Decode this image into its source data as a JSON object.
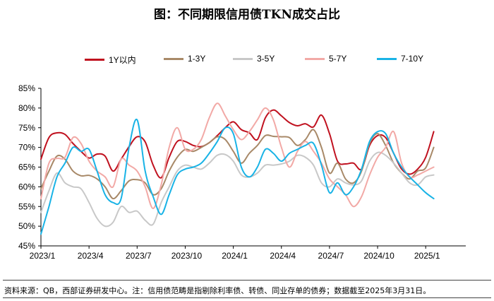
{
  "title": "图：不同期限信用债TKN成交占比",
  "source": "资料来源：QB，西部证券研发中心。注：信用债范畴是指剔除利率债、转债、同业存单的债券；数据截至2025年3月31日。",
  "chart_data": {
    "type": "line",
    "title": "图：不同期限信用债TKN成交占比",
    "xlabel": "",
    "ylabel": "",
    "ylim": [
      45,
      85
    ],
    "yticks": [
      "45%",
      "50%",
      "55%",
      "60%",
      "65%",
      "70%",
      "75%",
      "80%",
      "85%"
    ],
    "ytick_values": [
      45,
      50,
      55,
      60,
      65,
      70,
      75,
      80,
      85
    ],
    "x_range": [
      0,
      26.5
    ],
    "xticks": [
      {
        "label": "2023/1",
        "x": 0
      },
      {
        "label": "2023/4",
        "x": 3
      },
      {
        "label": "2023/7",
        "x": 6
      },
      {
        "label": "2023/10",
        "x": 9
      },
      {
        "label": "2024/1",
        "x": 12
      },
      {
        "label": "2024/4",
        "x": 15
      },
      {
        "label": "2024/7",
        "x": 18
      },
      {
        "label": "2024/10",
        "x": 21
      },
      {
        "label": "2025/1",
        "x": 24
      }
    ],
    "series": [
      {
        "name": "1Y以内",
        "color": "#C0111F",
        "points": [
          [
            0,
            67
          ],
          [
            0.5,
            72.5
          ],
          [
            1,
            73.7
          ],
          [
            1.5,
            73.3
          ],
          [
            2,
            71
          ],
          [
            2.5,
            69
          ],
          [
            3,
            67.3
          ],
          [
            3.5,
            68.3
          ],
          [
            4,
            67.8
          ],
          [
            4.5,
            64
          ],
          [
            5,
            67
          ],
          [
            5.5,
            70.2
          ],
          [
            6,
            72.7
          ],
          [
            6.5,
            71.4
          ],
          [
            7,
            65.5
          ],
          [
            7.5,
            62.3
          ],
          [
            8,
            67.5
          ],
          [
            8.5,
            71.5
          ],
          [
            9,
            71.5
          ],
          [
            9.5,
            70.5
          ],
          [
            10,
            70.2
          ],
          [
            10.5,
            71.2
          ],
          [
            11,
            73
          ],
          [
            11.5,
            75
          ],
          [
            12,
            76.5
          ],
          [
            12.5,
            74.5
          ],
          [
            13,
            73.7
          ],
          [
            13.5,
            72
          ],
          [
            14,
            77.5
          ],
          [
            14.5,
            79.5
          ],
          [
            15,
            78
          ],
          [
            15.5,
            76.3
          ],
          [
            16,
            75.5
          ],
          [
            16.5,
            76
          ],
          [
            17,
            75.2
          ],
          [
            17.5,
            78.2
          ],
          [
            18,
            73.5
          ],
          [
            18.5,
            66.5
          ],
          [
            19,
            65.8
          ],
          [
            19.5,
            66
          ],
          [
            20,
            64.5
          ],
          [
            20.5,
            70.5
          ],
          [
            21,
            73
          ],
          [
            21.5,
            72.5
          ],
          [
            22,
            68.5
          ],
          [
            22.5,
            64.5
          ],
          [
            23,
            63.2
          ],
          [
            23.5,
            64.5
          ],
          [
            24,
            67.5
          ],
          [
            24.5,
            74
          ]
        ]
      },
      {
        "name": "1-3Y",
        "color": "#A88968",
        "points": [
          [
            0,
            59.5
          ],
          [
            0.5,
            64
          ],
          [
            1,
            67.8
          ],
          [
            1.5,
            67
          ],
          [
            2,
            64
          ],
          [
            2.5,
            62.8
          ],
          [
            3,
            62.9
          ],
          [
            3.5,
            62
          ],
          [
            4,
            60
          ],
          [
            4.5,
            57
          ],
          [
            5,
            59
          ],
          [
            5.5,
            61.5
          ],
          [
            6,
            61.8
          ],
          [
            6.5,
            61
          ],
          [
            7,
            58
          ],
          [
            7.5,
            59.5
          ],
          [
            8,
            64
          ],
          [
            8.5,
            67.5
          ],
          [
            9,
            69.5
          ],
          [
            9.5,
            69
          ],
          [
            10,
            70
          ],
          [
            10.5,
            71.2
          ],
          [
            11,
            72.7
          ],
          [
            11.5,
            72
          ],
          [
            12,
            69
          ],
          [
            12.5,
            66
          ],
          [
            13,
            68.5
          ],
          [
            13.5,
            70.5
          ],
          [
            14,
            73
          ],
          [
            14.5,
            72.8
          ],
          [
            15,
            72.7
          ],
          [
            15.5,
            72.5
          ],
          [
            16,
            70.5
          ],
          [
            16.5,
            72
          ],
          [
            17,
            74.5
          ],
          [
            17.5,
            70
          ],
          [
            18,
            63.5
          ],
          [
            18.5,
            66
          ],
          [
            19,
            62
          ],
          [
            19.5,
            61
          ],
          [
            20,
            64
          ],
          [
            20.5,
            71
          ],
          [
            21,
            73.5
          ],
          [
            21.5,
            70.5
          ],
          [
            22,
            66
          ],
          [
            22.5,
            63.5
          ],
          [
            23,
            62
          ],
          [
            23.5,
            64
          ],
          [
            24,
            64.8
          ],
          [
            24.5,
            70
          ]
        ]
      },
      {
        "name": "3-5Y",
        "color": "#C8C8C8",
        "points": [
          [
            0,
            53.5
          ],
          [
            0.5,
            59
          ],
          [
            1,
            63.5
          ],
          [
            1.5,
            61
          ],
          [
            2,
            60
          ],
          [
            2.5,
            59.5
          ],
          [
            3,
            56
          ],
          [
            3.5,
            52
          ],
          [
            4,
            50
          ],
          [
            4.5,
            51
          ],
          [
            5,
            55
          ],
          [
            5.5,
            53.5
          ],
          [
            6,
            53.8
          ],
          [
            6.5,
            51.5
          ],
          [
            7,
            50.5
          ],
          [
            7.5,
            56
          ],
          [
            8,
            60
          ],
          [
            8.5,
            64
          ],
          [
            9,
            65.5
          ],
          [
            9.5,
            65
          ],
          [
            10,
            64.5
          ],
          [
            10.5,
            66
          ],
          [
            11,
            68
          ],
          [
            11.5,
            68.2
          ],
          [
            12,
            66.5
          ],
          [
            12.5,
            63
          ],
          [
            13,
            62.5
          ],
          [
            13.5,
            63.5
          ],
          [
            14,
            65.5
          ],
          [
            14.5,
            65.5
          ],
          [
            15,
            65.8
          ],
          [
            15.5,
            66.5
          ],
          [
            16,
            68
          ],
          [
            16.5,
            67.5
          ],
          [
            17,
            65.5
          ],
          [
            17.5,
            61
          ],
          [
            18,
            60
          ],
          [
            18.5,
            62
          ],
          [
            19,
            61
          ],
          [
            19.5,
            60.5
          ],
          [
            20,
            61.5
          ],
          [
            20.5,
            66.5
          ],
          [
            21,
            68.7
          ],
          [
            21.5,
            68
          ],
          [
            22,
            66
          ],
          [
            22.5,
            63.5
          ],
          [
            23,
            61
          ],
          [
            23.5,
            60.5
          ],
          [
            24,
            62.5
          ],
          [
            24.5,
            63
          ]
        ]
      },
      {
        "name": "5-7Y",
        "color": "#F2A9A6",
        "points": [
          [
            0,
            57
          ],
          [
            0.5,
            66
          ],
          [
            1,
            67.2
          ],
          [
            1.5,
            67.5
          ],
          [
            2,
            72.5
          ],
          [
            2.5,
            71
          ],
          [
            3,
            66.5
          ],
          [
            3.5,
            64
          ],
          [
            4,
            62.5
          ],
          [
            4.5,
            60
          ],
          [
            5,
            67
          ],
          [
            5.5,
            65.5
          ],
          [
            6,
            64
          ],
          [
            6.5,
            60
          ],
          [
            7,
            54.5
          ],
          [
            7.5,
            60.5
          ],
          [
            8,
            70
          ],
          [
            8.5,
            75
          ],
          [
            9,
            69.5
          ],
          [
            9.5,
            69.5
          ],
          [
            10,
            72
          ],
          [
            10.5,
            77.5
          ],
          [
            11,
            81.2
          ],
          [
            11.5,
            78
          ],
          [
            12,
            74.5
          ],
          [
            12.5,
            72
          ],
          [
            13,
            74
          ],
          [
            13.5,
            77
          ],
          [
            14,
            80
          ],
          [
            14.5,
            77
          ],
          [
            15,
            70
          ],
          [
            15.5,
            65
          ],
          [
            16,
            69
          ],
          [
            16.5,
            71.5
          ],
          [
            17,
            69
          ],
          [
            17.5,
            66
          ],
          [
            18,
            62
          ],
          [
            18.5,
            60
          ],
          [
            19,
            58
          ],
          [
            19.5,
            55
          ],
          [
            20,
            57.5
          ],
          [
            20.5,
            63
          ],
          [
            21,
            67.5
          ],
          [
            21.5,
            70
          ],
          [
            22,
            74
          ],
          [
            22.5,
            66
          ],
          [
            23,
            62.5
          ],
          [
            23.5,
            63
          ],
          [
            24,
            64
          ],
          [
            24.5,
            65
          ]
        ]
      },
      {
        "name": "7-10Y",
        "color": "#19B3E6",
        "points": [
          [
            0,
            48
          ],
          [
            0.5,
            55
          ],
          [
            1,
            62.5
          ],
          [
            1.5,
            66
          ],
          [
            2,
            70
          ],
          [
            2.5,
            69
          ],
          [
            3,
            69.5
          ],
          [
            3.5,
            64
          ],
          [
            4,
            58
          ],
          [
            4.5,
            56
          ],
          [
            5,
            57
          ],
          [
            5.5,
            70
          ],
          [
            6,
            77
          ],
          [
            6.5,
            64
          ],
          [
            7,
            57.5
          ],
          [
            7.5,
            53
          ],
          [
            8,
            58
          ],
          [
            8.5,
            63
          ],
          [
            9,
            64.5
          ],
          [
            9.5,
            65
          ],
          [
            10,
            66
          ],
          [
            10.5,
            68.5
          ],
          [
            11,
            71.5
          ],
          [
            11.5,
            75
          ],
          [
            12,
            73.5
          ],
          [
            12.5,
            65
          ],
          [
            13,
            62.5
          ],
          [
            13.5,
            65
          ],
          [
            14,
            69.5
          ],
          [
            14.5,
            68.5
          ],
          [
            15,
            66.5
          ],
          [
            15.5,
            68.5
          ],
          [
            16,
            69.5
          ],
          [
            16.5,
            70.5
          ],
          [
            17,
            71
          ],
          [
            17.5,
            65.5
          ],
          [
            18,
            58.5
          ],
          [
            18.5,
            61
          ],
          [
            19,
            58
          ],
          [
            19.5,
            60
          ],
          [
            20,
            64.5
          ],
          [
            20.5,
            71.5
          ],
          [
            21,
            74
          ],
          [
            21.5,
            73.5
          ],
          [
            22,
            68.5
          ],
          [
            22.5,
            65
          ],
          [
            23,
            62.5
          ],
          [
            23.5,
            60.5
          ],
          [
            24,
            58.5
          ],
          [
            24.5,
            57
          ]
        ]
      }
    ]
  }
}
